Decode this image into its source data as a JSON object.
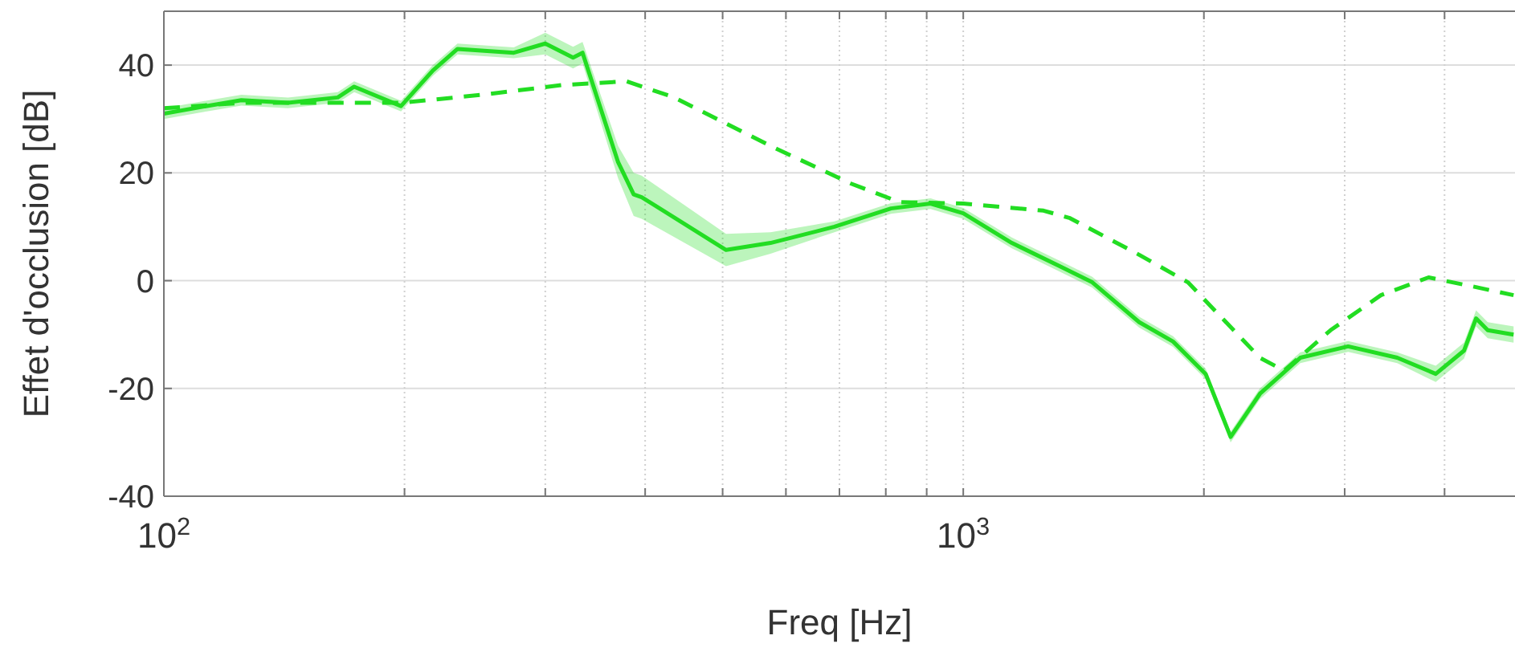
{
  "chart_data": {
    "type": "line",
    "xlabel": "Freq [Hz]",
    "ylabel": "Effet d'occlusion [dB]",
    "log": "x",
    "grid": true,
    "xlim": [
      100,
      4900
    ],
    "ylim": [
      -40,
      50
    ],
    "xticks": [
      {
        "value": 100,
        "label": "10$^{2}$"
      },
      {
        "value": 200,
        "label": null
      },
      {
        "value": 300,
        "label": null
      },
      {
        "value": 400,
        "label": null
      },
      {
        "value": 500,
        "label": null
      },
      {
        "value": 600,
        "label": null
      },
      {
        "value": 700,
        "label": null
      },
      {
        "value": 800,
        "label": null
      },
      {
        "value": 900,
        "label": null
      },
      {
        "value": 1000,
        "label": "10$^{3}$"
      },
      {
        "value": 2000,
        "label": null
      },
      {
        "value": 3000,
        "label": null
      },
      {
        "value": 4000,
        "label": null
      }
    ],
    "yticks": [
      -40,
      -20,
      0,
      20,
      40
    ],
    "series": [
      {
        "color": "#22dd22",
        "line_style": "solid",
        "x": [
          100,
          114,
          125,
          143,
          165,
          173,
          198,
          217,
          233,
          274,
          300,
          325,
          334,
          370,
          387,
          396,
          505,
          574,
          690,
          812,
          910,
          1000,
          1150,
          1320,
          1450,
          1660,
          1830,
          2010,
          2160,
          2350,
          2640,
          3030,
          3490,
          3900,
          4230,
          4380,
          4530,
          4880
        ],
        "values": [
          31,
          32.5,
          33.5,
          33,
          34,
          36,
          32.4,
          39,
          43,
          42.3,
          44,
          41.4,
          42.3,
          22,
          16,
          15.5,
          5.7,
          7,
          10,
          13.4,
          14.3,
          12.5,
          7,
          2.7,
          -0.3,
          -7.7,
          -11.3,
          -17.3,
          -29,
          -21,
          -14.3,
          -12.2,
          -14.3,
          -17.3,
          -13,
          -7,
          -9.2,
          -10
        ],
        "lower": [
          30,
          31.5,
          32.5,
          32,
          33,
          35,
          31.4,
          38,
          42,
          41.3,
          42,
          39.4,
          40.3,
          19,
          12,
          11.5,
          2.7,
          5,
          9,
          12.4,
          13.3,
          11.5,
          6,
          1.7,
          -1.3,
          -8.7,
          -12.3,
          -18.3,
          -30,
          -22,
          -15.3,
          -13.2,
          -15.3,
          -18.8,
          -14.5,
          -8.5,
          -10.7,
          -11.5
        ],
        "upper": [
          32,
          33.5,
          34.5,
          34,
          35,
          37,
          33.4,
          40,
          44,
          43.3,
          46,
          43.4,
          44.3,
          25,
          20,
          19.5,
          8.7,
          9,
          11,
          14.4,
          15.3,
          13.5,
          8,
          3.7,
          0.7,
          -6.7,
          -10.3,
          -16.3,
          -28,
          -20,
          -13.3,
          -11.2,
          -13.3,
          -15.8,
          -11.5,
          -5.5,
          -7.7,
          -8.5
        ]
      },
      {
        "color": "#22dd22",
        "line_style": "dashed",
        "x": [
          100,
          125,
          157,
          198,
          250,
          315,
          379,
          435,
          574,
          724,
          832,
          1000,
          1260,
          1360,
          1660,
          1910,
          2350,
          2520,
          2880,
          3330,
          3820,
          4380,
          4880
        ],
        "values": [
          32,
          33,
          33,
          33,
          34.5,
          36.3,
          37,
          34,
          25,
          18,
          14.6,
          14.3,
          13,
          11.6,
          4.8,
          -0.3,
          -14.3,
          -16.7,
          -9.2,
          -2.7,
          0.6,
          -1.2,
          -2.7
        ]
      }
    ]
  }
}
